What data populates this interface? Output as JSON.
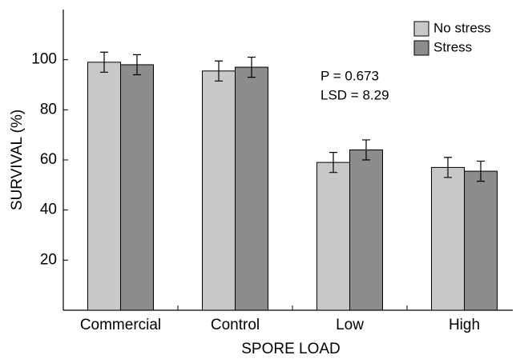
{
  "chart_data": {
    "type": "bar",
    "x_label": "SPORE LOAD",
    "y_label": "SURVIVAL (%)",
    "annotations": [
      "P = 0.673",
      "LSD = 8.29"
    ],
    "categories": [
      "Commercial",
      "Control",
      "Low",
      "High"
    ],
    "series": [
      {
        "name": "No stress",
        "color": "#c8c8c8",
        "values": [
          99,
          95.5,
          59,
          57
        ],
        "errors": [
          4,
          4,
          4,
          4
        ]
      },
      {
        "name": "Stress",
        "color": "#8c8c8c",
        "values": [
          98,
          97,
          64,
          55.5
        ],
        "errors": [
          4,
          4,
          4,
          4
        ]
      }
    ],
    "ylim": [
      0,
      120
    ],
    "yticks": [
      20,
      40,
      60,
      80,
      100
    ],
    "legend": "upper right"
  }
}
